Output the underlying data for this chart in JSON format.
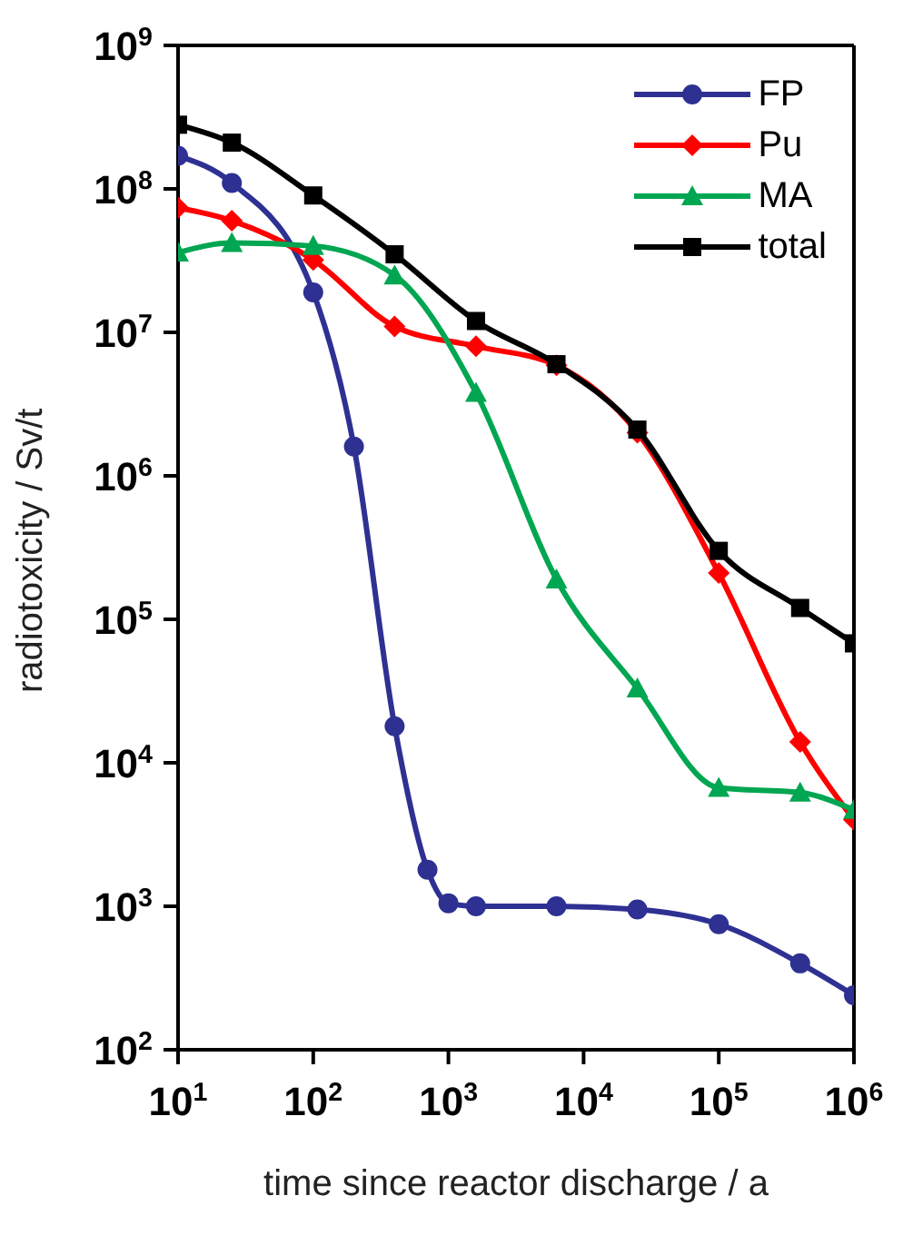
{
  "chart_data": {
    "type": "line",
    "xlabel": "time since reactor discharge / a",
    "ylabel": "radiotoxicity / Sv/t",
    "log": "xy",
    "xlim": [
      10,
      1000000
    ],
    "ylim": [
      100,
      1000000000
    ],
    "xticks": [
      {
        "value": 10,
        "label": "10$^{1}$"
      },
      {
        "value": 100,
        "label": "10$^{2}$"
      },
      {
        "value": 1000,
        "label": "10$^{3}$"
      },
      {
        "value": 10000,
        "label": "10$^{4}$"
      },
      {
        "value": 100000,
        "label": "10$^{5}$"
      },
      {
        "value": 1000000,
        "label": "10$^{6}$"
      }
    ],
    "yticks": [
      {
        "value": 100,
        "label": "10$^{2}$"
      },
      {
        "value": 1000,
        "label": "10$^{3}$"
      },
      {
        "value": 10000,
        "label": "10$^{4}$"
      },
      {
        "value": 100000,
        "label": "10$^{5}$"
      },
      {
        "value": 1000000,
        "label": "10$^{6}$"
      },
      {
        "value": 10000000,
        "label": "10$^{7}$"
      },
      {
        "value": 100000000,
        "label": "10$^{8}$"
      },
      {
        "value": 1000000000,
        "label": "10$^{9}$"
      }
    ],
    "legend": "top right",
    "line_style": "solid",
    "series": [
      {
        "name": "FP",
        "color": "#2e3192",
        "marker": "circle",
        "x": [
          10,
          25,
          100,
          200,
          400,
          700,
          1000,
          1600,
          6300,
          25000,
          100000,
          400000,
          1000000
        ],
        "values": [
          170000000,
          110000000,
          19000000,
          1600000,
          18000,
          1800,
          1050,
          1000,
          1000,
          950,
          750,
          400,
          240
        ]
      },
      {
        "name": "Pu",
        "color": "#ff0000",
        "marker": "diamond",
        "x": [
          10,
          25,
          100,
          400,
          1600,
          6300,
          25000,
          100000,
          400000,
          1000000
        ],
        "values": [
          74000000,
          60000000,
          32000000,
          11000000,
          8000000,
          5900000,
          2000000,
          210000,
          14000,
          4000
        ]
      },
      {
        "name": "MA",
        "color": "#00a651",
        "marker": "triangle",
        "x": [
          10,
          25,
          100,
          400,
          1600,
          6300,
          25000,
          100000,
          400000,
          1000000
        ],
        "values": [
          36000000,
          42000000,
          40000000,
          25000000,
          3800000,
          190000,
          33000,
          6700,
          6200,
          4700
        ]
      },
      {
        "name": "total",
        "color": "#000000",
        "marker": "square",
        "x": [
          10,
          25,
          100,
          400,
          1600,
          6300,
          25000,
          100000,
          400000,
          1000000
        ],
        "values": [
          280000000,
          210000000,
          90000000,
          35000000,
          12000000,
          6000000,
          2100000,
          300000,
          120000,
          68000
        ]
      }
    ]
  }
}
